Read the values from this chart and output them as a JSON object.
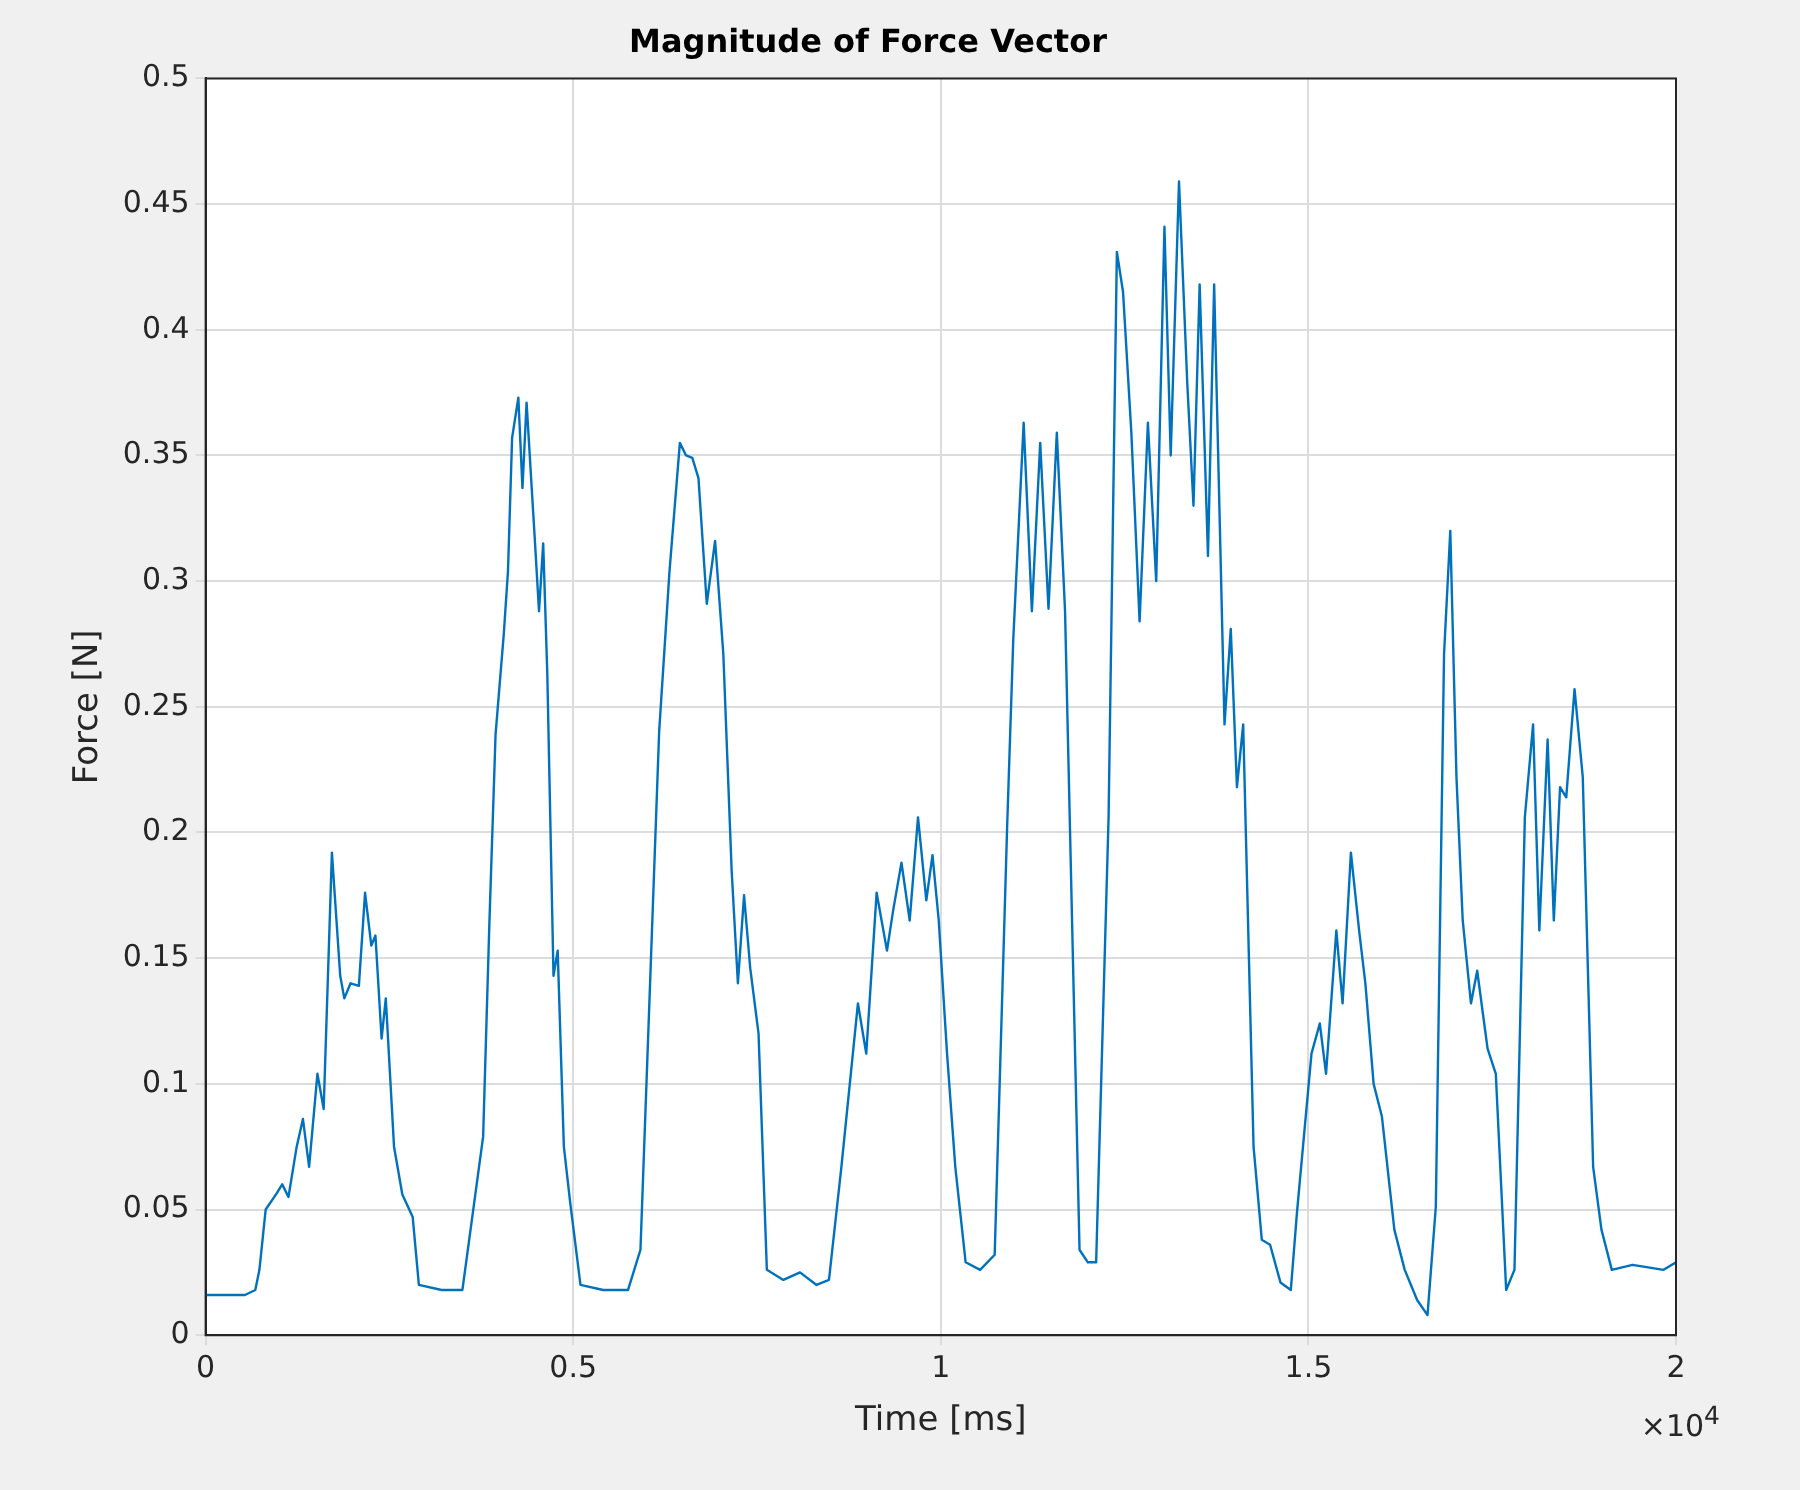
{
  "chart_data": {
    "type": "line",
    "title": "Magnitude of Force Vector",
    "xlabel": "Time [ms]",
    "ylabel": "Force [N]",
    "color": "#0072bd",
    "grid": true,
    "xlim": [
      0,
      2
    ],
    "ylim": [
      0,
      0.5
    ],
    "xticks": [
      0,
      0.5,
      1,
      1.5,
      2
    ],
    "yticks": [
      0,
      0.05,
      0.1,
      0.15,
      0.2,
      0.25,
      0.3,
      0.35,
      0.4,
      0.45,
      0.5
    ],
    "annotations": [
      "×10$^{4}$"
    ],
    "x": [
      0,
      0.0535,
      0.0676,
      0.0732,
      0.0817,
      0.0958,
      0.1042,
      0.1127,
      0.1239,
      0.1324,
      0.1408,
      0.1521,
      0.1606,
      0.1718,
      0.1831,
      0.1887,
      0.1972,
      0.2085,
      0.2169,
      0.2254,
      0.231,
      0.2394,
      0.2451,
      0.2563,
      0.2676,
      0.2817,
      0.2901,
      0.3211,
      0.3493,
      0.3775,
      0.3859,
      0.3944,
      0.4056,
      0.4113,
      0.4169,
      0.4254,
      0.431,
      0.4366,
      0.4479,
      0.4535,
      0.4592,
      0.4648,
      0.4732,
      0.4789,
      0.4873,
      0.4958,
      0.5099,
      0.5408,
      0.5746,
      0.5915,
      0.6169,
      0.631,
      0.6451,
      0.6535,
      0.662,
      0.6704,
      0.6817,
      0.693,
      0.7042,
      0.7155,
      0.724,
      0.7324,
      0.7408,
      0.7521,
      0.7634,
      0.7859,
      0.8085,
      0.831,
      0.8479,
      0.8648,
      0.8873,
      0.8986,
      0.9127,
      0.9268,
      0.9352,
      0.9465,
      0.9577,
      0.969,
      0.9803,
      0.9887,
      0.9972,
      1.0085,
      1.0197,
      1.0338,
      1.0535,
      1.0733,
      1.0902,
      1.0986,
      1.1127,
      1.1239,
      1.1352,
      1.1465,
      1.1578,
      1.169,
      1.1887,
      1.2,
      1.2113,
      1.2282,
      1.2395,
      1.2479,
      1.2592,
      1.2704,
      1.2817,
      1.293,
      1.3042,
      1.3127,
      1.324,
      1.3352,
      1.3437,
      1.3521,
      1.3634,
      1.3718,
      1.3859,
      1.3944,
      1.4028,
      1.4113,
      1.4254,
      1.4366,
      1.4479,
      1.462,
      1.4761,
      1.4845,
      1.5042,
      1.5155,
      1.524,
      1.538,
      1.5465,
      1.5578,
      1.569,
      1.5775,
      1.5887,
      1.6,
      1.6169,
      1.631,
      1.6479,
      1.662,
      1.6733,
      1.6845,
      1.693,
      1.7014,
      1.7099,
      1.7211,
      1.7296,
      1.7437,
      1.7549,
      1.769,
      1.7803,
      1.7944,
      1.8056,
      1.8141,
      1.8254,
      1.8338,
      1.8423,
      1.8507,
      1.862,
      1.8732,
      1.8873,
      1.8986,
      1.9127,
      1.9408,
      1.9831,
      2
    ],
    "values": [
      0.016,
      0.016,
      0.018,
      0.026,
      0.05,
      0.056,
      0.06,
      0.055,
      0.075,
      0.086,
      0.067,
      0.104,
      0.09,
      0.192,
      0.143,
      0.134,
      0.14,
      0.139,
      0.176,
      0.155,
      0.159,
      0.118,
      0.134,
      0.075,
      0.056,
      0.047,
      0.02,
      0.018,
      0.018,
      0.079,
      0.163,
      0.239,
      0.279,
      0.304,
      0.357,
      0.373,
      0.337,
      0.371,
      0.316,
      0.288,
      0.315,
      0.263,
      0.143,
      0.153,
      0.075,
      0.053,
      0.02,
      0.018,
      0.018,
      0.034,
      0.24,
      0.304,
      0.355,
      0.35,
      0.349,
      0.341,
      0.291,
      0.316,
      0.271,
      0.185,
      0.14,
      0.175,
      0.146,
      0.12,
      0.026,
      0.022,
      0.025,
      0.02,
      0.022,
      0.067,
      0.132,
      0.112,
      0.176,
      0.153,
      0.169,
      0.188,
      0.165,
      0.206,
      0.173,
      0.191,
      0.165,
      0.112,
      0.067,
      0.029,
      0.026,
      0.032,
      0.202,
      0.277,
      0.363,
      0.288,
      0.355,
      0.289,
      0.359,
      0.288,
      0.034,
      0.029,
      0.029,
      0.206,
      0.431,
      0.415,
      0.359,
      0.284,
      0.363,
      0.3,
      0.441,
      0.35,
      0.459,
      0.379,
      0.33,
      0.418,
      0.31,
      0.418,
      0.243,
      0.281,
      0.218,
      0.243,
      0.075,
      0.038,
      0.036,
      0.021,
      0.018,
      0.049,
      0.112,
      0.124,
      0.104,
      0.161,
      0.132,
      0.192,
      0.161,
      0.14,
      0.1,
      0.087,
      0.042,
      0.026,
      0.014,
      0.008,
      0.051,
      0.271,
      0.32,
      0.222,
      0.165,
      0.132,
      0.145,
      0.114,
      0.104,
      0.018,
      0.026,
      0.206,
      0.243,
      0.161,
      0.237,
      0.165,
      0.218,
      0.214,
      0.257,
      0.222,
      0.067,
      0.042,
      0.026,
      0.028,
      0.026,
      0.029
    ]
  }
}
